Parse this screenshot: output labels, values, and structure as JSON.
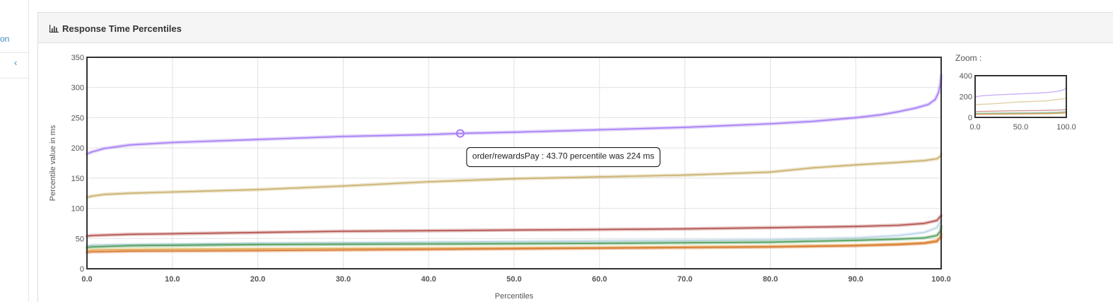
{
  "sidebar": {
    "nav_label": "on",
    "collapse_glyph": "‹"
  },
  "panel": {
    "title": "Response Time Percentiles",
    "icon": "bar-chart-icon"
  },
  "zoom": {
    "label": "Zoom :",
    "y_ticks": [
      "0",
      "200",
      "400"
    ],
    "x_ticks": [
      "0.0",
      "50.0",
      "100.0"
    ]
  },
  "tooltip": {
    "text": "order/rewardsPay : 43.70 percentile was 224 ms",
    "x": 43.7,
    "y": 224,
    "series_color": "#a77df4"
  },
  "chart_data": {
    "type": "line",
    "xlabel": "Percentiles",
    "ylabel": "Percentile value in ms",
    "xlim": [
      0,
      100
    ],
    "ylim": [
      0,
      350
    ],
    "x_tick_labels": [
      "0.0",
      "10.0",
      "20.0",
      "30.0",
      "40.0",
      "50.0",
      "60.0",
      "70.0",
      "80.0",
      "90.0",
      "100.0"
    ],
    "y_tick_labels": [
      "0",
      "50",
      "100",
      "150",
      "200",
      "250",
      "300",
      "350"
    ],
    "grid": true,
    "series": [
      {
        "name": "order/rewardsPay",
        "color": "#a77df4",
        "x": [
          0,
          0.5,
          2,
          5,
          10,
          20,
          30,
          40,
          43.7,
          50,
          60,
          70,
          80,
          85,
          90,
          93,
          95,
          97,
          98.5,
          99.3,
          99.7,
          99.9,
          100
        ],
        "y": [
          190,
          193,
          199,
          205,
          209,
          214,
          219,
          222,
          224,
          226,
          230,
          234,
          240,
          244,
          250,
          255,
          260,
          266,
          272,
          280,
          292,
          305,
          320
        ]
      },
      {
        "color": "#c9b06b",
        "x": [
          0,
          0.5,
          2,
          5,
          10,
          20,
          30,
          40,
          50,
          60,
          70,
          80,
          85,
          90,
          95,
          98,
          99.5,
          99.9,
          100
        ],
        "y": [
          118,
          120,
          123,
          125,
          127,
          131,
          137,
          144,
          149,
          152,
          155,
          160,
          167,
          172,
          176,
          179,
          182,
          186,
          190
        ]
      },
      {
        "color": "#b2504a",
        "x": [
          0,
          0.5,
          5,
          10,
          20,
          30,
          40,
          50,
          60,
          70,
          80,
          90,
          95,
          98,
          99.5,
          100
        ],
        "y": [
          54,
          55,
          57,
          58,
          60,
          62,
          63,
          64,
          65,
          66,
          68,
          70,
          72,
          75,
          80,
          88
        ]
      },
      {
        "color": "#bcd6e6",
        "x": [
          0,
          0.5,
          5,
          20,
          40,
          60,
          80,
          90,
          95,
          98,
          99.5,
          100
        ],
        "y": [
          38,
          39,
          40,
          42,
          44,
          46,
          48,
          51,
          55,
          60,
          68,
          80
        ]
      },
      {
        "color": "#4f9f59",
        "x": [
          0,
          0.5,
          5,
          20,
          40,
          60,
          80,
          90,
          95,
          98,
          99.5,
          99.9,
          100
        ],
        "y": [
          35,
          36,
          38,
          40,
          41,
          42,
          44,
          47,
          49,
          51,
          55,
          62,
          70
        ]
      },
      {
        "color": "#e3b45a",
        "x": [
          0,
          0.5,
          5,
          20,
          40,
          60,
          80,
          90,
          95,
          98,
          99.5,
          100
        ],
        "y": [
          30,
          31,
          32,
          33,
          34,
          35,
          37,
          39,
          41,
          43,
          47,
          52
        ]
      },
      {
        "color": "#d97a36",
        "x": [
          0,
          0.5,
          5,
          20,
          40,
          60,
          80,
          90,
          95,
          98,
          99.5,
          99.9,
          100
        ],
        "y": [
          27,
          28,
          29,
          30,
          32,
          34,
          36,
          38,
          40,
          42,
          45,
          52,
          58
        ]
      }
    ]
  }
}
